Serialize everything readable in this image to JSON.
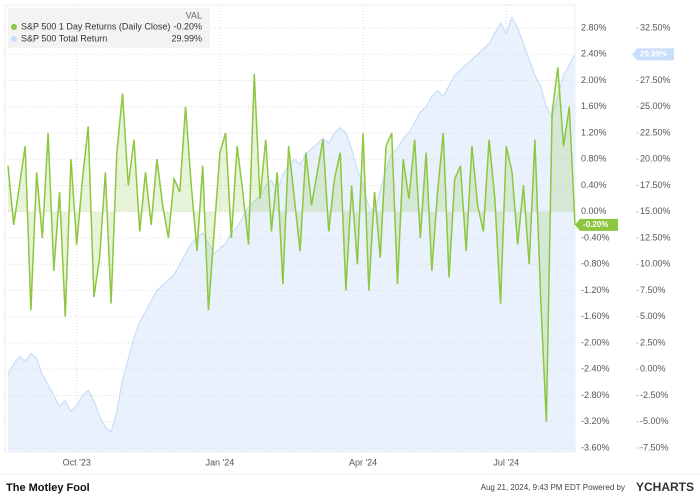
{
  "chart_data": {
    "type": "line",
    "legend_header": "VAL",
    "categories": [
      null,
      null,
      null,
      null,
      null,
      null,
      null,
      null,
      null,
      null,
      null,
      null,
      "Oct '23",
      null,
      null,
      null,
      null,
      null,
      null,
      null,
      null,
      null,
      null,
      null,
      null,
      null,
      null,
      null,
      null,
      null,
      null,
      null,
      null,
      null,
      null,
      null,
      null,
      "Jan '24",
      null,
      null,
      null,
      null,
      null,
      null,
      null,
      null,
      null,
      null,
      null,
      null,
      null,
      null,
      null,
      null,
      null,
      null,
      null,
      null,
      null,
      null,
      null,
      null,
      "Apr '24",
      null,
      null,
      null,
      null,
      null,
      null,
      null,
      null,
      null,
      null,
      null,
      null,
      null,
      null,
      null,
      null,
      null,
      null,
      null,
      null,
      null,
      null,
      null,
      null,
      "Jul '24",
      null,
      null,
      null,
      null,
      null,
      null,
      null,
      null,
      null,
      null,
      null,
      null
    ],
    "series": [
      {
        "name": "S&P 500 1 Day Returns (Daily Close)",
        "color": "#8dc63f",
        "current_label": "-0.20%",
        "values": [
          0.7,
          -0.2,
          0.4,
          1.0,
          -1.5,
          0.6,
          -0.4,
          1.2,
          -0.9,
          0.3,
          -1.6,
          0.8,
          -0.5,
          0.5,
          1.3,
          -1.3,
          -0.7,
          0.6,
          -1.4,
          0.9,
          1.8,
          0.4,
          1.1,
          -0.3,
          0.6,
          -0.2,
          0.8,
          0.1,
          -0.4,
          0.5,
          0.3,
          1.6,
          0.4,
          -0.6,
          0.7,
          -1.5,
          -0.3,
          0.9,
          1.2,
          -0.4,
          1.0,
          0.3,
          -0.5,
          2.1,
          0.2,
          1.1,
          -0.3,
          0.6,
          -1.1,
          1.0,
          0.2,
          -0.6,
          0.9,
          0.1,
          0.6,
          1.1,
          -0.3,
          0.5,
          0.9,
          -1.2,
          0.4,
          -0.8,
          1.2,
          -1.2,
          0.3,
          -0.7,
          1.0,
          1.2,
          -1.1,
          0.8,
          0.2,
          1.1,
          -0.4,
          0.9,
          -0.9,
          0.3,
          1.2,
          -1.0,
          0.5,
          0.7,
          -0.6,
          1.0,
          0.1,
          -0.3,
          1.1,
          0.2,
          -1.4,
          1.0,
          0.6,
          -0.5,
          0.4,
          -0.8,
          1.1,
          -1.3,
          -3.2,
          1.5,
          2.2,
          1.0,
          1.6,
          -0.2
        ]
      },
      {
        "name": "S&P 500 Total Return",
        "color": "#c9defa",
        "axis": "y2",
        "current_label": "29.99%",
        "values": [
          -0.5,
          0.5,
          1.2,
          0.8,
          1.5,
          1.0,
          -0.5,
          -1.5,
          -2.5,
          -3.5,
          -3.0,
          -4.0,
          -3.5,
          -2.5,
          -2.0,
          -3.0,
          -4.5,
          -5.5,
          -6.0,
          -4.0,
          -1.0,
          1.0,
          3.0,
          4.5,
          5.5,
          6.5,
          7.5,
          8.0,
          8.5,
          9.0,
          10.0,
          11.0,
          12.0,
          12.5,
          13.0,
          12.0,
          11.0,
          11.5,
          12.0,
          13.0,
          13.5,
          14.5,
          15.5,
          16.0,
          16.5,
          17.5,
          18.0,
          17.0,
          18.5,
          19.5,
          20.0,
          19.5,
          20.5,
          21.0,
          21.5,
          22.0,
          21.5,
          22.5,
          23.0,
          22.5,
          21.0,
          19.0,
          17.5,
          15.5,
          15.0,
          17.0,
          19.0,
          20.5,
          21.0,
          22.0,
          22.5,
          23.5,
          24.5,
          25.0,
          26.0,
          26.5,
          26.0,
          27.0,
          28.0,
          28.5,
          29.0,
          29.5,
          30.0,
          30.5,
          31.0,
          32.0,
          33.0,
          32.0,
          33.5,
          32.5,
          31.0,
          29.5,
          28.0,
          27.0,
          25.0,
          24.0,
          26.0,
          28.0,
          29.0,
          29.99
        ]
      }
    ],
    "ylim": [
      -3.6,
      2.8
    ],
    "yticks": [
      {
        "value": 2.8,
        "label": "2.80%"
      },
      {
        "value": 2.4,
        "label": "2.40%"
      },
      {
        "value": 2.0,
        "label": "2.00%"
      },
      {
        "value": 1.6,
        "label": "1.60%"
      },
      {
        "value": 1.2,
        "label": "1.20%"
      },
      {
        "value": 0.8,
        "label": "0.80%"
      },
      {
        "value": 0.4,
        "label": "0.40%"
      },
      {
        "value": 0,
        "label": "0.00%"
      },
      {
        "value": -0.4,
        "label": "-0.40%"
      },
      {
        "value": -0.8,
        "label": "-0.80%"
      },
      {
        "value": -1.2,
        "label": "-1.20%"
      },
      {
        "value": -1.6,
        "label": "-1.60%"
      },
      {
        "value": -2.0,
        "label": "-2.00%"
      },
      {
        "value": -2.4,
        "label": "-2.40%"
      },
      {
        "value": -2.8,
        "label": "-2.80%"
      },
      {
        "value": -3.2,
        "label": "-3.20%"
      },
      {
        "value": -3.6,
        "label": "-3.60%"
      }
    ],
    "y2lim": [
      -7.5,
      32.5
    ],
    "y2ticks": [
      {
        "value": 32.5,
        "label": "32.50%"
      },
      {
        "value": 30,
        "label": "30.00%"
      },
      {
        "value": 27.5,
        "label": "27.50%"
      },
      {
        "value": 25,
        "label": "25.00%"
      },
      {
        "value": 22.5,
        "label": "22.50%"
      },
      {
        "value": 20,
        "label": "20.00%"
      },
      {
        "value": 17.5,
        "label": "17.50%"
      },
      {
        "value": 15,
        "label": "15.00%"
      },
      {
        "value": 12.5,
        "label": "12.50%"
      },
      {
        "value": 10,
        "label": "10.00%"
      },
      {
        "value": 7.5,
        "label": "7.50%"
      },
      {
        "value": 5,
        "label": "5.00%"
      },
      {
        "value": 2.5,
        "label": "2.50%"
      },
      {
        "value": 0,
        "label": "0.00%"
      },
      {
        "value": -2.5,
        "label": "-2.50%"
      },
      {
        "value": -5,
        "label": "-5.00%"
      },
      {
        "value": -7.5,
        "label": "-7.50%"
      }
    ],
    "grid": true
  },
  "footer": {
    "brand": "The Motley Fool",
    "timestamp": "Aug 21, 2024, 9:43 PM EDT  Powered by",
    "provider": "YCHARTS"
  }
}
